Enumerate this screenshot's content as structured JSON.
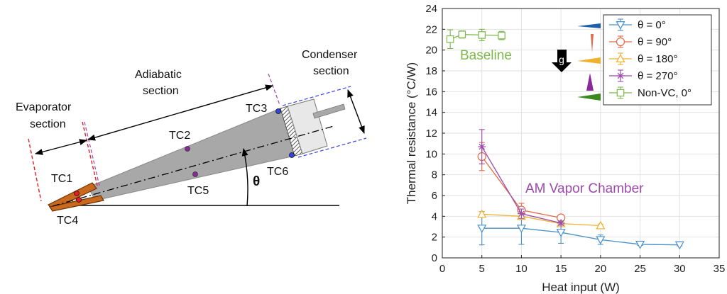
{
  "diagram": {
    "labels": {
      "evaporator": [
        "Evaporator",
        "section"
      ],
      "adiabatic": [
        "Adiabatic",
        "section"
      ],
      "condenser": [
        "Condenser",
        "section"
      ],
      "theta": "θ",
      "tc1": "TC1",
      "tc2": "TC2",
      "tc3": "TC3",
      "tc4": "TC4",
      "tc5": "TC5",
      "tc6": "TC6"
    }
  },
  "chart_data": {
    "type": "line",
    "xlabel": "Heat input (W)",
    "ylabel": "Thermal resistance (°C/W)",
    "xlim": [
      0,
      35
    ],
    "ylim": [
      0,
      24
    ],
    "xticks": [
      0,
      5,
      10,
      15,
      20,
      25,
      30,
      35
    ],
    "yticks": [
      0,
      2,
      4,
      6,
      8,
      10,
      12,
      14,
      16,
      18,
      20,
      22,
      24
    ],
    "grid": true,
    "legend_position": "top-right",
    "annotations": {
      "baseline": "Baseline",
      "am_vc": "AM Vapor Chamber",
      "gravity": "g"
    },
    "series": [
      {
        "name": "θ = 0°",
        "color": "#4a90c8",
        "marker": "triangle-down",
        "x": [
          5,
          10,
          15,
          20,
          25,
          30
        ],
        "y": [
          2.85,
          2.85,
          2.45,
          1.75,
          1.3,
          1.25
        ],
        "err": [
          1.6,
          1.55,
          1.05,
          0.45,
          0.1,
          0.1
        ]
      },
      {
        "name": "θ = 90°",
        "color": "#e06a4a",
        "marker": "circle",
        "x": [
          5,
          10,
          15
        ],
        "y": [
          9.75,
          4.6,
          3.85
        ],
        "err": [
          1.35,
          0.65,
          0.2
        ]
      },
      {
        "name": "θ = 180°",
        "color": "#f0b030",
        "marker": "triangle-up",
        "x": [
          5,
          10,
          15,
          20
        ],
        "y": [
          4.2,
          4.0,
          3.3,
          3.1
        ],
        "err": [
          0.25,
          0.3,
          0.2,
          0.15
        ]
      },
      {
        "name": "θ = 270°",
        "color": "#9b4aa8",
        "marker": "star",
        "x": [
          5,
          10,
          15
        ],
        "y": [
          10.7,
          4.25,
          3.35
        ],
        "err": [
          1.65,
          0.45,
          0.2
        ]
      },
      {
        "name": "Non-VC, 0°",
        "color": "#7cb84a",
        "marker": "square",
        "x": [
          1,
          2.5,
          5,
          7.5
        ],
        "y": [
          21.05,
          21.5,
          21.45,
          21.4
        ],
        "err": [
          0.9,
          0.35,
          0.55,
          0.4
        ]
      }
    ]
  }
}
